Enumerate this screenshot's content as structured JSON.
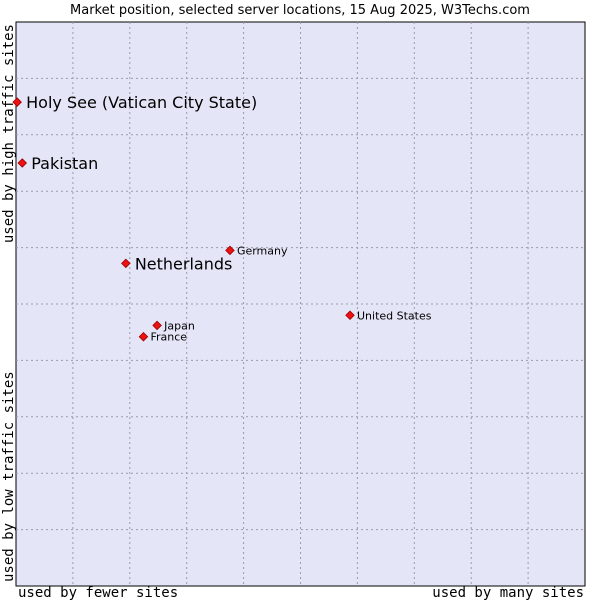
{
  "chart_data": {
    "type": "scatter",
    "title": "Market position, selected server locations, 15 Aug 2025, W3Techs.com",
    "xlabel_left": "used by fewer sites",
    "xlabel_right": "used by many sites",
    "ylabel_bottom": "used by low traffic sites",
    "ylabel_top": "used by high traffic sites",
    "xlim": [
      0,
      100
    ],
    "ylim": [
      0,
      100
    ],
    "grid": true,
    "colors": {
      "plot_bg": "#e4e6f7",
      "grid": "#9a9aab",
      "border": "#000000",
      "point_fill": "#ee1111",
      "point_stroke": "#990000"
    },
    "points": [
      {
        "name": "Holy See (Vatican City State)",
        "x": 0.2,
        "y": 85.8,
        "emphasis": true
      },
      {
        "name": "Pakistan",
        "x": 1.1,
        "y": 75.0,
        "emphasis": true
      },
      {
        "name": "Netherlands",
        "x": 19.3,
        "y": 57.2,
        "emphasis": true
      },
      {
        "name": "Germany",
        "x": 37.6,
        "y": 59.5,
        "emphasis": false
      },
      {
        "name": "United States",
        "x": 58.7,
        "y": 48.0,
        "emphasis": false
      },
      {
        "name": "Japan",
        "x": 24.8,
        "y": 46.2,
        "emphasis": false
      },
      {
        "name": "France",
        "x": 22.4,
        "y": 44.2,
        "emphasis": false
      }
    ]
  }
}
